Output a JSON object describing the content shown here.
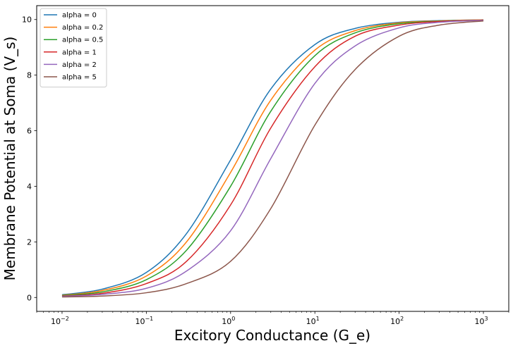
{
  "chart_data": {
    "type": "line",
    "xlabel": "Excitory Conductance (G_e)",
    "ylabel": "Membrane Potential at Soma (V_s)",
    "xscale": "log",
    "xlim": [
      0.005,
      2000
    ],
    "ylim": [
      -0.5,
      10.5
    ],
    "xticks": [
      0.01,
      0.1,
      1,
      10,
      100,
      1000
    ],
    "xtick_labels": [
      {
        "base": "10",
        "exp": "−2"
      },
      {
        "base": "10",
        "exp": "−1"
      },
      {
        "base": "10",
        "exp": "0"
      },
      {
        "base": "10",
        "exp": "1"
      },
      {
        "base": "10",
        "exp": "2"
      },
      {
        "base": "10",
        "exp": "3"
      }
    ],
    "yticks": [
      0,
      2,
      4,
      6,
      8,
      10
    ],
    "ytick_labels": [
      "0",
      "2",
      "4",
      "6",
      "8",
      "10"
    ],
    "grid": false,
    "legend_position": "top-left",
    "x": [
      0.01,
      0.03,
      0.1,
      0.3,
      1,
      3,
      10,
      30,
      100,
      300,
      1000
    ],
    "series": [
      {
        "name": "alpha = 0",
        "color": "#1f77b4",
        "values": [
          0.1,
          0.3,
          0.9,
          2.3,
          4.95,
          7.5,
          9.1,
          9.68,
          9.9,
          9.96,
          9.99
        ]
      },
      {
        "name": "alpha = 0.2",
        "color": "#ff7f0e",
        "values": [
          0.08,
          0.25,
          0.77,
          2.0,
          4.5,
          7.1,
          8.9,
          9.6,
          9.88,
          9.95,
          9.99
        ]
      },
      {
        "name": "alpha = 0.5",
        "color": "#2ca02c",
        "values": [
          0.07,
          0.2,
          0.64,
          1.7,
          4.0,
          6.7,
          8.7,
          9.52,
          9.85,
          9.94,
          9.98
        ]
      },
      {
        "name": "alpha = 1",
        "color": "#d62728",
        "values": [
          0.05,
          0.15,
          0.5,
          1.3,
          3.33,
          6.1,
          8.3,
          9.4,
          9.8,
          9.93,
          9.98
        ]
      },
      {
        "name": "alpha = 2",
        "color": "#9467bd",
        "values": [
          0.04,
          0.11,
          0.33,
          0.95,
          2.4,
          5.0,
          7.7,
          9.05,
          9.7,
          9.9,
          9.97
        ]
      },
      {
        "name": "alpha = 5",
        "color": "#8c564b",
        "values": [
          0.02,
          0.05,
          0.17,
          0.5,
          1.3,
          3.2,
          6.2,
          8.2,
          9.4,
          9.8,
          9.95
        ]
      }
    ]
  }
}
